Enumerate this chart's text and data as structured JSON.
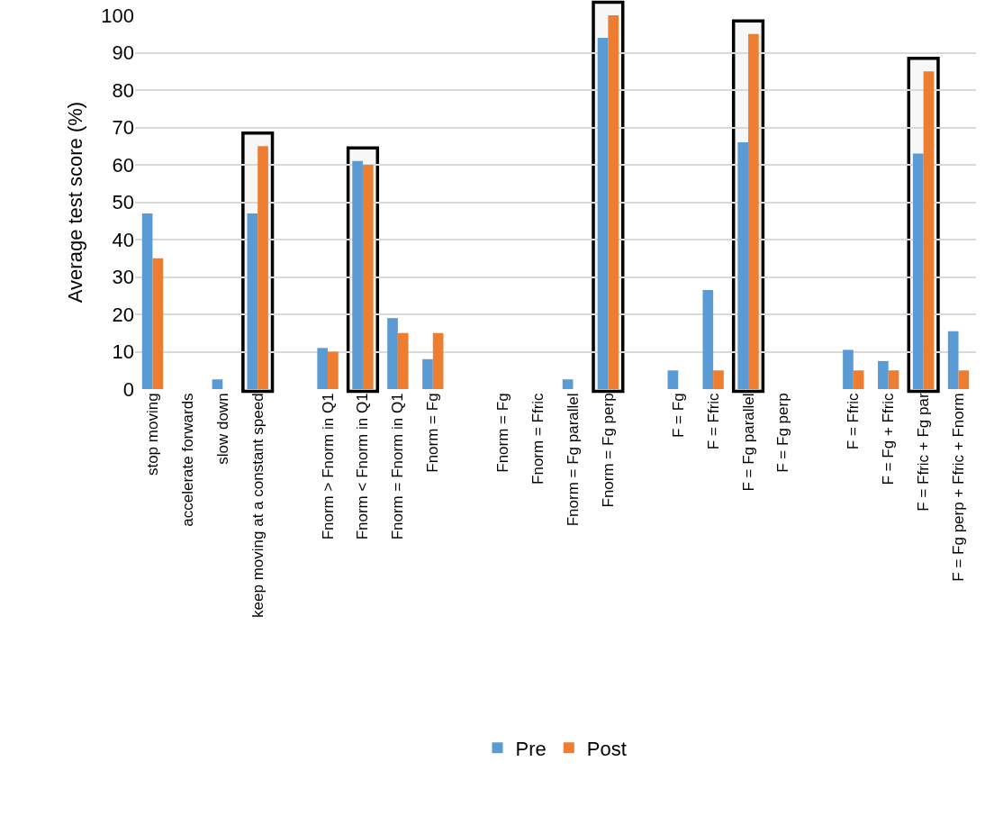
{
  "chart_data": {
    "type": "bar",
    "ylabel": "Average test score (%)",
    "categories": [
      "stop moving",
      "accelerate forwards",
      "slow down",
      "keep moving at a constant speed",
      null,
      "Fnorm > Fnorm in Q1",
      "Fnorm < Fnorm in Q1",
      "Fnorm = Fnorm in Q1",
      "Fnorm = Fg",
      null,
      "Fnorm = Fg",
      "Fnorm = Ffric",
      "Fnorm = Fg parallel",
      "Fnorm = Fg perp",
      null,
      "F = Fg",
      "F = Ffric",
      "F = Fg parallel",
      "F = Fg perp",
      null,
      "F = Ffric",
      "F = Fg + Ffric",
      "F = Ffric + Fg par",
      "F = Fg perp + Ffric + Fnorm"
    ],
    "series": [
      {
        "name": "Pre",
        "color": "#5b9bd5",
        "values": [
          47,
          0,
          2.6,
          47,
          null,
          11,
          61,
          19,
          8,
          null,
          0,
          0,
          2.6,
          94,
          null,
          5,
          26.5,
          66,
          0,
          null,
          10.5,
          7.5,
          63,
          15.5
        ]
      },
      {
        "name": "Post",
        "color": "#ed7d31",
        "values": [
          35,
          0,
          0,
          65,
          null,
          10,
          60,
          15,
          15,
          null,
          0,
          0,
          0,
          100,
          null,
          0,
          5,
          95,
          0,
          null,
          5,
          5,
          85,
          5
        ]
      }
    ],
    "ylim": [
      0,
      100
    ],
    "yticks": [
      0,
      10,
      20,
      30,
      40,
      50,
      60,
      70,
      80,
      90,
      100
    ],
    "bands": [
      {
        "axis": "x",
        "from": "keep moving at a constant speed",
        "to": "keep moving at a constant speed",
        "color": "#000000"
      },
      {
        "axis": "x",
        "from": "Fnorm < Fnorm in Q1",
        "to": "Fnorm < Fnorm in Q1",
        "color": "#000000"
      },
      {
        "axis": "x",
        "from": "Fnorm = Fg perp",
        "to": "Fnorm = Fg perp",
        "color": "#000000"
      },
      {
        "axis": "x",
        "from": "F = Fg parallel",
        "to": "F = Fg parallel",
        "color": "#000000"
      },
      {
        "axis": "x",
        "from": "F = Ffric + Fg par",
        "to": "F = Ffric + Fg par",
        "color": "#000000"
      }
    ],
    "grid": "y",
    "legend": "bottom"
  }
}
